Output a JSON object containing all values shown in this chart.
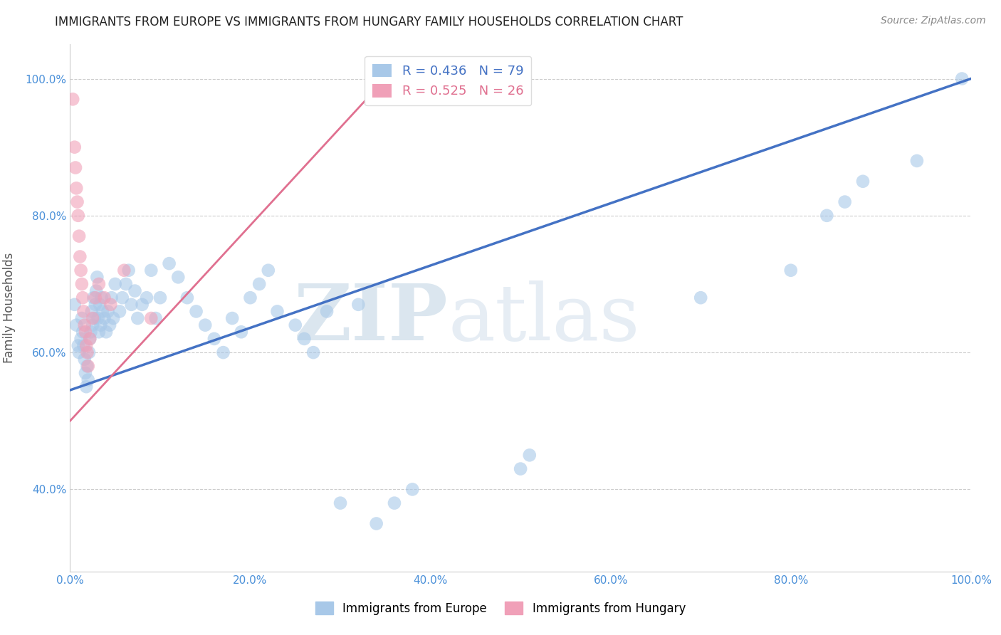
{
  "title": "IMMIGRANTS FROM EUROPE VS IMMIGRANTS FROM HUNGARY FAMILY HOUSEHOLDS CORRELATION CHART",
  "source_text": "Source: ZipAtlas.com",
  "ylabel": "Family Households",
  "watermark_zip": "ZIP",
  "watermark_atlas": "atlas",
  "xlim": [
    0,
    1.0
  ],
  "ylim": [
    0.28,
    1.05
  ],
  "xticks": [
    0.0,
    0.2,
    0.4,
    0.6,
    0.8,
    1.0
  ],
  "xticklabels": [
    "0.0%",
    "20.0%",
    "40.0%",
    "60.0%",
    "80.0%",
    "100.0%"
  ],
  "yticks": [
    0.4,
    0.6,
    0.8,
    1.0
  ],
  "yticklabels": [
    "40.0%",
    "60.0%",
    "80.0%",
    "100.0%"
  ],
  "legend_blue_label": "R = 0.436   N = 79",
  "legend_pink_label": "R = 0.525   N = 26",
  "blue_color": "#a8c8e8",
  "pink_color": "#f0a0b8",
  "blue_line_color": "#4472c4",
  "pink_line_color": "#e07090",
  "grid_color": "#cccccc",
  "blue_scatter_x": [
    0.005,
    0.007,
    0.009,
    0.01,
    0.012,
    0.013,
    0.014,
    0.015,
    0.016,
    0.017,
    0.018,
    0.019,
    0.02,
    0.021,
    0.022,
    0.023,
    0.024,
    0.025,
    0.026,
    0.027,
    0.028,
    0.029,
    0.03,
    0.031,
    0.032,
    0.033,
    0.034,
    0.035,
    0.036,
    0.038,
    0.04,
    0.042,
    0.044,
    0.046,
    0.048,
    0.05,
    0.055,
    0.058,
    0.062,
    0.065,
    0.068,
    0.072,
    0.075,
    0.08,
    0.085,
    0.09,
    0.095,
    0.1,
    0.11,
    0.12,
    0.13,
    0.14,
    0.15,
    0.16,
    0.17,
    0.18,
    0.19,
    0.2,
    0.21,
    0.22,
    0.23,
    0.25,
    0.26,
    0.27,
    0.285,
    0.3,
    0.32,
    0.34,
    0.36,
    0.38,
    0.5,
    0.51,
    0.7,
    0.8,
    0.84,
    0.86,
    0.88,
    0.94,
    0.99
  ],
  "blue_scatter_y": [
    0.67,
    0.64,
    0.61,
    0.6,
    0.62,
    0.65,
    0.63,
    0.61,
    0.59,
    0.57,
    0.55,
    0.58,
    0.56,
    0.6,
    0.62,
    0.63,
    0.66,
    0.64,
    0.68,
    0.65,
    0.67,
    0.69,
    0.71,
    0.65,
    0.63,
    0.67,
    0.64,
    0.68,
    0.66,
    0.65,
    0.63,
    0.66,
    0.64,
    0.68,
    0.65,
    0.7,
    0.66,
    0.68,
    0.7,
    0.72,
    0.67,
    0.69,
    0.65,
    0.67,
    0.68,
    0.72,
    0.65,
    0.68,
    0.73,
    0.71,
    0.68,
    0.66,
    0.64,
    0.62,
    0.6,
    0.65,
    0.63,
    0.68,
    0.7,
    0.72,
    0.66,
    0.64,
    0.62,
    0.6,
    0.66,
    0.38,
    0.67,
    0.35,
    0.38,
    0.4,
    0.43,
    0.45,
    0.68,
    0.72,
    0.8,
    0.82,
    0.85,
    0.88,
    1.0
  ],
  "pink_scatter_x": [
    0.003,
    0.005,
    0.006,
    0.007,
    0.008,
    0.009,
    0.01,
    0.011,
    0.012,
    0.013,
    0.014,
    0.015,
    0.016,
    0.017,
    0.018,
    0.019,
    0.02,
    0.022,
    0.025,
    0.028,
    0.032,
    0.038,
    0.045,
    0.06,
    0.09,
    0.34
  ],
  "pink_scatter_y": [
    0.97,
    0.9,
    0.87,
    0.84,
    0.82,
    0.8,
    0.77,
    0.74,
    0.72,
    0.7,
    0.68,
    0.66,
    0.64,
    0.63,
    0.61,
    0.6,
    0.58,
    0.62,
    0.65,
    0.68,
    0.7,
    0.68,
    0.67,
    0.72,
    0.65,
    0.97
  ],
  "background_color": "#ffffff"
}
